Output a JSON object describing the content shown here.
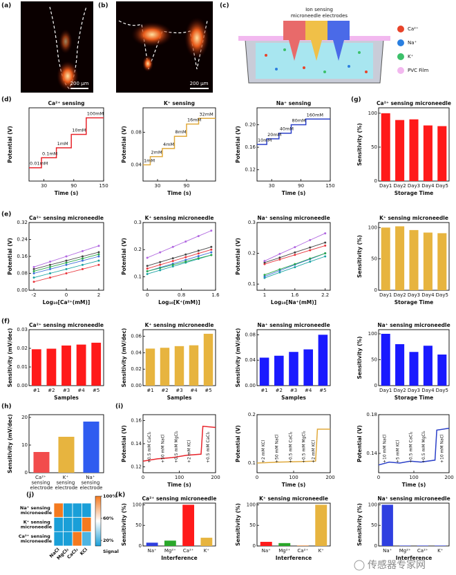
{
  "images": [
    {
      "panel_label": "(a)",
      "scale_bar": "200 μm"
    },
    {
      "panel_label": "(b)",
      "scale_bar": "200 μm"
    }
  ],
  "diagram": {
    "panel_label": "(c)",
    "title_lines": [
      "Ion sensing",
      "microneedle electrodes"
    ],
    "legend": [
      {
        "label": "Ca²⁺",
        "color": "#e8442a"
      },
      {
        "label": "Na⁺",
        "color": "#2a7fe0"
      },
      {
        "label": "K⁺",
        "color": "#3cc06a"
      },
      {
        "label": "PVC Film",
        "color": "#f2b8ef"
      }
    ]
  },
  "watermark": "传感器专家网",
  "chart_data": [
    {
      "type": "line",
      "panel_label": "(d)",
      "title": "Ca²⁺ sensing",
      "xlabel": "Time (s)",
      "ylabel": "Potential (V)",
      "xlim": [
        0,
        150
      ],
      "xticks": [
        30,
        90,
        150
      ],
      "ylim": [
        0.09,
        0.2
      ],
      "x": [
        0,
        25,
        25,
        55,
        55,
        85,
        85,
        115,
        115,
        150
      ],
      "series": [
        {
          "color": "#e8232a",
          "values": [
            0.11,
            0.11,
            0.125,
            0.125,
            0.14,
            0.14,
            0.16,
            0.16,
            0.185,
            0.185
          ]
        }
      ],
      "step_labels": [
        "0.01mM",
        "0.1mM",
        "1mM",
        "10mM",
        "100mM"
      ]
    },
    {
      "type": "line",
      "title": "K⁺ sensing",
      "xlabel": "Time (s)",
      "ylabel": "Potential (V)",
      "xlim": [
        0,
        150
      ],
      "xticks": [
        30,
        90
      ],
      "ylim": [
        0.02,
        0.11
      ],
      "yticks": [
        0.04,
        0.08
      ],
      "x": [
        0,
        15,
        15,
        40,
        40,
        65,
        65,
        90,
        90,
        115,
        115,
        150
      ],
      "series": [
        {
          "color": "#e0a93a",
          "values": [
            0.04,
            0.04,
            0.05,
            0.05,
            0.06,
            0.06,
            0.075,
            0.075,
            0.09,
            0.09,
            0.097,
            0.097
          ]
        }
      ],
      "step_labels": [
        "1mM",
        "2mM",
        "4mM",
        "8mM",
        "16mM",
        "32mM"
      ]
    },
    {
      "type": "line",
      "title": "Na⁺ sensing",
      "xlabel": "Time (s)",
      "ylabel": "Potential (V)",
      "xlim": [
        0,
        150
      ],
      "xticks": [
        30,
        90,
        150
      ],
      "ylim": [
        0.1,
        0.23
      ],
      "yticks": [
        0.12,
        0.16,
        {
          "value": 0.2,
          "label": "0.20"
        }
      ],
      "x": [
        0,
        20,
        20,
        45,
        45,
        70,
        70,
        100,
        100,
        150
      ],
      "series": [
        {
          "color": "#2a3fc8",
          "values": [
            0.165,
            0.165,
            0.175,
            0.175,
            0.185,
            0.185,
            0.2,
            0.2,
            0.21,
            0.21
          ]
        }
      ],
      "step_labels": [
        "10mM",
        "20mM",
        "40mM",
        "80mM",
        "160mM"
      ]
    },
    {
      "type": "bar",
      "panel_label": "(g)",
      "title": "Ca²⁺ sensing microneedle",
      "xlabel": "Storage Time",
      "ylabel": "Sensitivity (%)",
      "categories": [
        "Day1",
        "Day2",
        "Day3",
        "Day4",
        "Day5"
      ],
      "values": [
        100,
        90,
        91,
        82,
        81
      ],
      "color": "#ff1a1a",
      "ylim": [
        0,
        108
      ],
      "yticks": [
        0,
        50,
        100
      ]
    },
    {
      "type": "line",
      "panel_label": "(e)",
      "title": "Ca²⁺ sensing microneedle",
      "xlabel": "Log₁₀[Ca²⁺(mM)]",
      "ylabel": "Potential (V)",
      "markers": true,
      "xlim": [
        -2.3,
        2.3
      ],
      "xticks": [
        -2,
        0,
        2
      ],
      "ylim": [
        0,
        0.32
      ],
      "yticks": [
        {
          "value": 0,
          "label": "0.00"
        },
        {
          "value": 0.08,
          "label": "0.08"
        },
        0.16,
        0.24,
        0.32
      ],
      "x": [
        -2,
        -1,
        0,
        1,
        2
      ],
      "series": [
        {
          "color": "#e8333a",
          "values": [
            0.04,
            0.06,
            0.08,
            0.1,
            0.12
          ]
        },
        {
          "color": "#1aa3a3",
          "values": [
            0.06,
            0.08,
            0.1,
            0.12,
            0.14
          ]
        },
        {
          "color": "#3a6fd8",
          "values": [
            0.08,
            0.1,
            0.12,
            0.14,
            0.16
          ]
        },
        {
          "color": "#2aa84a",
          "values": [
            0.09,
            0.11,
            0.13,
            0.15,
            0.17
          ]
        },
        {
          "color": "#444444",
          "values": [
            0.1,
            0.12,
            0.14,
            0.16,
            0.18
          ]
        },
        {
          "color": "#b066e0",
          "values": [
            0.11,
            0.135,
            0.16,
            0.185,
            0.21
          ]
        }
      ]
    },
    {
      "type": "line",
      "title": "K⁺ sensing microneedle",
      "xlabel": "Log₁₀[K⁺(mM)]",
      "ylabel": "Potential (V)",
      "markers": true,
      "xlim": [
        -0.1,
        1.6
      ],
      "xticks": [
        0,
        0.8,
        1.6
      ],
      "ylim": [
        0.05,
        0.3
      ],
      "yticks": [
        0.1,
        0.2,
        0.3
      ],
      "x": [
        0,
        0.3,
        0.6,
        0.9,
        1.2,
        1.5
      ],
      "series": [
        {
          "color": "#1aa3a3",
          "values": [
            0.11,
            0.124,
            0.138,
            0.152,
            0.166,
            0.18
          ]
        },
        {
          "color": "#3a6fd8",
          "values": [
            0.12,
            0.134,
            0.148,
            0.162,
            0.176,
            0.19
          ]
        },
        {
          "color": "#2aa84a",
          "values": [
            0.12,
            0.132,
            0.144,
            0.156,
            0.168,
            0.18
          ]
        },
        {
          "color": "#e8333a",
          "values": [
            0.13,
            0.144,
            0.158,
            0.172,
            0.186,
            0.2
          ]
        },
        {
          "color": "#444444",
          "values": [
            0.14,
            0.154,
            0.168,
            0.182,
            0.196,
            0.21
          ]
        },
        {
          "color": "#b066e0",
          "values": [
            0.17,
            0.19,
            0.21,
            0.23,
            0.25,
            0.27
          ]
        }
      ]
    },
    {
      "type": "line",
      "title": "Na⁺ sensing microneedle",
      "xlabel": "Log₁₀[Na⁺(mM)]",
      "ylabel": "Potential (V)",
      "markers": true,
      "xlim": [
        0.85,
        2.3
      ],
      "xticks": [
        1,
        1.6,
        2.2
      ],
      "ylim": [
        0.08,
        0.3
      ],
      "yticks": [
        0.1,
        0.2,
        0.3
      ],
      "x": [
        1,
        1.3,
        1.6,
        1.9,
        2.2
      ],
      "series": [
        {
          "color": "#1aa3a3",
          "values": [
            0.12,
            0.138,
            0.155,
            0.173,
            0.19
          ]
        },
        {
          "color": "#3a6fd8",
          "values": [
            0.125,
            0.144,
            0.163,
            0.181,
            0.2
          ]
        },
        {
          "color": "#2aa84a",
          "values": [
            0.13,
            0.148,
            0.165,
            0.183,
            0.2
          ]
        },
        {
          "color": "#e8333a",
          "values": [
            0.165,
            0.18,
            0.195,
            0.21,
            0.225
          ]
        },
        {
          "color": "#444444",
          "values": [
            0.17,
            0.186,
            0.203,
            0.219,
            0.235
          ]
        },
        {
          "color": "#b066e0",
          "values": [
            0.175,
            0.198,
            0.22,
            0.243,
            0.265
          ]
        }
      ]
    },
    {
      "type": "bar",
      "title": "K⁺ sensing microneedle",
      "xlabel": "Storage Time",
      "ylabel": "Sensitivity (%)",
      "categories": [
        "Day1",
        "Day2",
        "Day3",
        "Day4",
        "Day5"
      ],
      "values": [
        100,
        102,
        96,
        92,
        91
      ],
      "color": "#e7b43f",
      "ylim": [
        0,
        108
      ],
      "yticks": [
        0,
        50,
        100
      ]
    },
    {
      "type": "bar",
      "panel_label": "(f)",
      "title": "Ca²⁺ sensing microneedle",
      "xlabel": "Samples",
      "ylabel": "Sensitivity (mV/dec)",
      "categories": [
        "#1",
        "#2",
        "#3",
        "#4",
        "#5"
      ],
      "values": [
        0.0195,
        0.0198,
        0.0215,
        0.022,
        0.023
      ],
      "color": "#ff1a1a",
      "ylim": [
        0,
        0.03
      ],
      "yticks": [
        {
          "value": 0,
          "label": "0.00"
        },
        {
          "value": 0.01,
          "label": "0.01"
        },
        {
          "value": 0.02,
          "label": "0.02"
        },
        {
          "value": 0.03,
          "label": "0.03"
        }
      ]
    },
    {
      "type": "bar",
      "title": "K⁺ sensing microneedle",
      "xlabel": "Samples",
      "ylabel": "Sensitivity (mV/dec)",
      "categories": [
        "#1",
        "#2",
        "#3",
        "#4",
        "#5"
      ],
      "values": [
        0.045,
        0.046,
        0.048,
        0.049,
        0.063
      ],
      "color": "#e7b43f",
      "ylim": [
        0,
        0.068
      ],
      "yticks": [
        {
          "value": 0,
          "label": "0.00"
        },
        {
          "value": 0.02,
          "label": "0.02"
        },
        {
          "value": 0.04,
          "label": "0.04"
        },
        {
          "value": 0.06,
          "label": "0.06"
        }
      ]
    },
    {
      "type": "bar",
      "title": "Na⁺ sensing microneedle",
      "xlabel": "Samples",
      "ylabel": "Sensitivity (mV/dec)",
      "categories": [
        "#1",
        "#2",
        "#3",
        "#4",
        "#5"
      ],
      "values": [
        0.044,
        0.047,
        0.053,
        0.057,
        0.08
      ],
      "color": "#1a1aff",
      "ylim": [
        0,
        0.088
      ],
      "yticks": [
        {
          "value": 0,
          "label": "0.00"
        },
        {
          "value": 0.04,
          "label": "0.04"
        },
        {
          "value": 0.08,
          "label": "0.08"
        }
      ]
    },
    {
      "type": "bar",
      "title": "Na⁺ sensing microneedle",
      "xlabel": "Storage Time",
      "ylabel": "Sensitivity (%)",
      "categories": [
        "Day1",
        "Day2",
        "Day3",
        "Day4",
        "Day5"
      ],
      "values": [
        100,
        80,
        65,
        77,
        60
      ],
      "color": "#1a1aff",
      "ylim": [
        0,
        108
      ],
      "yticks": [
        0,
        50,
        100
      ]
    },
    {
      "type": "bar",
      "panel_label": "(h)",
      "ylabel": "Sensitivity (mV/dec)",
      "categories": [
        "Ca²⁺ sensing electrode",
        "K⁺ sensing electrode",
        "Na⁺ sensing electrode"
      ],
      "values": [
        7.5,
        13,
        18.5
      ],
      "colors": [
        "#f24c4c",
        "#e7b43f",
        "#2f5cf0"
      ],
      "ylim": [
        0,
        21
      ],
      "yticks": [
        0,
        10,
        20
      ]
    },
    {
      "type": "line",
      "panel_label": "(i)",
      "xlabel": "Time (s)",
      "ylabel": "Potential (V)",
      "xlim": [
        0,
        200
      ],
      "xticks": [
        0,
        100,
        200
      ],
      "ylim": [
        0.115,
        0.165
      ],
      "yticks": [
        0.12,
        0.14,
        0.16
      ],
      "x": [
        0,
        40,
        80,
        120,
        160,
        165,
        200
      ],
      "series": [
        {
          "color": "#e8232a",
          "values": [
            0.125,
            0.127,
            0.128,
            0.13,
            0.131,
            0.155,
            0.154
          ]
        }
      ],
      "annotations": [
        {
          "text": "+0.5 mM CaCl₂",
          "x": 18
        },
        {
          "text": "+50 mM NaCl",
          "x": 55
        },
        {
          "text": "+0.5 mM MgCl₂",
          "x": 92
        },
        {
          "text": "+2 mM KCl",
          "x": 128
        },
        {
          "text": "+0.5 mM CaCl₂",
          "x": 180
        }
      ]
    },
    {
      "type": "line",
      "xlabel": "Time (s)",
      "ylabel": "Potential (V)",
      "xlim": [
        0,
        200
      ],
      "xticks": [
        0,
        100,
        200
      ],
      "ylim": [
        0.08,
        0.2
      ],
      "yticks": [
        0.1,
        0.2
      ],
      "x": [
        0,
        60,
        120,
        160,
        165,
        200
      ],
      "series": [
        {
          "color": "#e0a93a",
          "values": [
            0.1,
            0.102,
            0.103,
            0.104,
            0.17,
            0.17
          ]
        }
      ],
      "annotations": [
        {
          "text": "+2 mM KCl",
          "x": 18
        },
        {
          "text": "+50 mM NaCl",
          "x": 55
        },
        {
          "text": "+0.5 mM CaCl₂",
          "x": 92
        },
        {
          "text": "+0.5 mM MgCl₂",
          "x": 128
        },
        {
          "text": "+2 mM KCl",
          "x": 155
        }
      ]
    },
    {
      "type": "line",
      "xlabel": "Time (s)",
      "ylabel": "Potential (V)",
      "xlim": [
        0,
        200
      ],
      "xticks": [
        0,
        100,
        200
      ],
      "ylim": [
        0.12,
        0.18
      ],
      "yticks": [
        0.14,
        0.18
      ],
      "x": [
        0,
        30,
        60,
        90,
        120,
        160,
        165,
        200
      ],
      "series": [
        {
          "color": "#2a3fc8",
          "values": [
            0.128,
            0.131,
            0.13,
            0.132,
            0.131,
            0.133,
            0.164,
            0.166
          ]
        }
      ],
      "annotations": [
        {
          "text": "+10 mM NaCl",
          "x": 18
        },
        {
          "text": "+5 mM KCl",
          "x": 55
        },
        {
          "text": "+0.5 mM CaCl₂",
          "x": 92
        },
        {
          "text": "+0.5 mM MgCl₂",
          "x": 128
        },
        {
          "text": "+10 mM NaCl",
          "x": 180
        }
      ]
    },
    {
      "type": "heatmap",
      "panel_label": "(j)",
      "rows": [
        "Na⁺ sensing microneedle",
        "K⁺ sensing microneedle",
        "Ca²⁺ sensing microneedle"
      ],
      "columns": [
        "NaCl",
        "MgCl₂",
        "CaCl₂",
        "KCl"
      ],
      "values": [
        [
          100,
          10,
          10,
          10
        ],
        [
          10,
          10,
          10,
          100
        ],
        [
          10,
          10,
          100,
          20
        ]
      ],
      "zlim": [
        10,
        100
      ],
      "colorbar": {
        "label": "Signal",
        "ticks": [
          {
            "value": 100,
            "label": "100%"
          },
          {
            "value": 60,
            "label": "60%"
          },
          {
            "value": 20,
            "label": "20%"
          }
        ]
      }
    },
    {
      "type": "bar",
      "panel_label": "(k)",
      "title": "Ca²⁺ sensing microneedle",
      "xlabel": "Interference",
      "ylabel": "Sensitivity (%)",
      "categories": [
        "Na⁺",
        "Mg²⁺",
        "Ca²⁺",
        "K⁺"
      ],
      "values": [
        8,
        13,
        100,
        20
      ],
      "colors": [
        "#2f3fe0",
        "#2aa82a",
        "#ff1a1a",
        "#e7b43f"
      ],
      "ylim": [
        0,
        104
      ],
      "yticks": [
        0,
        50,
        100
      ]
    },
    {
      "type": "bar",
      "title": "K⁺ sensing microneedle",
      "xlabel": "Interference",
      "ylabel": "Sensitivity (%)",
      "categories": [
        "Na⁺",
        "Mg²⁺",
        "Ca²⁺",
        "K⁺"
      ],
      "values": [
        10,
        7,
        1,
        100
      ],
      "colors": [
        "#ff1a1a",
        "#2aa82a",
        "#f07a1a",
        "#e7b43f"
      ],
      "ylim": [
        0,
        104
      ],
      "yticks": [
        0,
        50,
        100
      ]
    },
    {
      "type": "bar",
      "title": "Na⁺ sensing microneedle",
      "xlabel": "Interference",
      "ylabel": "Sensitivity (%)",
      "categories": [
        "Na⁺",
        "Mg²⁺",
        "Ca²⁺",
        "K⁺"
      ],
      "values": [
        100,
        1,
        1,
        1
      ],
      "colors": [
        "#2f3fe0",
        "#2f3fe0",
        "#2f3fe0",
        "#2f3fe0"
      ],
      "ylim": [
        0,
        104
      ],
      "yticks": [
        0,
        50,
        100
      ]
    }
  ]
}
